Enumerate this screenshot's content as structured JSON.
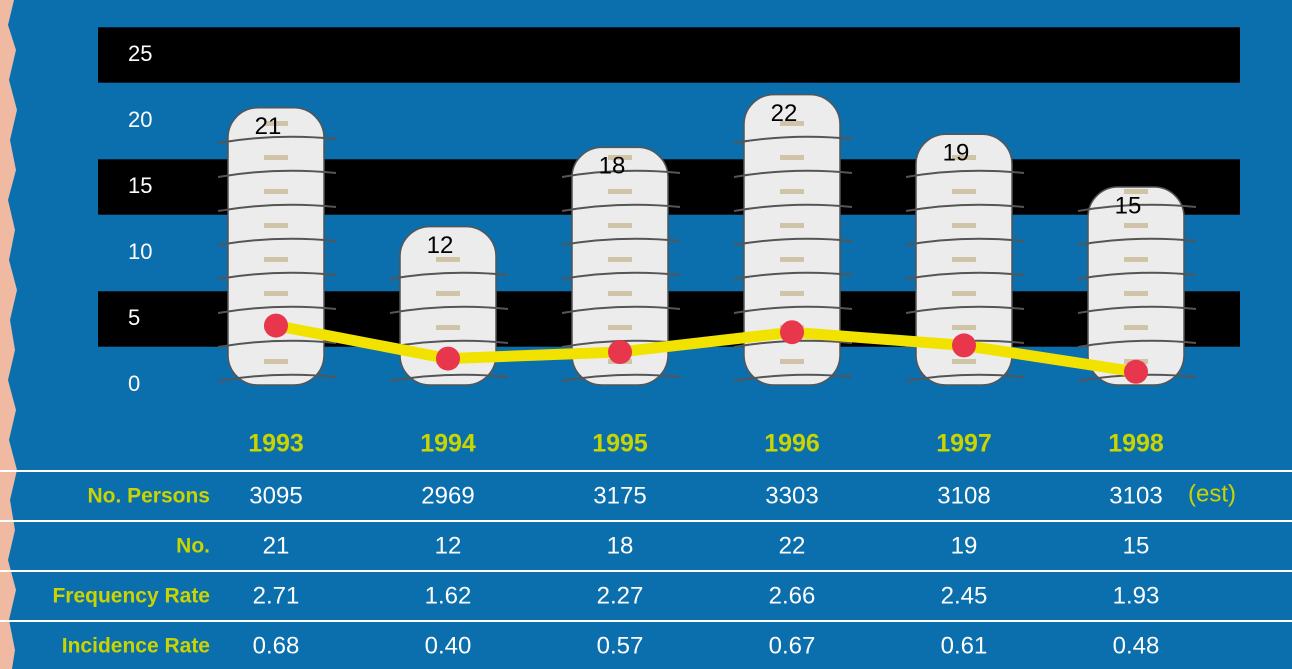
{
  "chart_data": {
    "type": "bar",
    "categories": [
      "1993",
      "1994",
      "1995",
      "1996",
      "1997",
      "1998"
    ],
    "values": [
      21,
      12,
      18,
      22,
      19,
      15
    ],
    "color": "#ececec",
    "line": {
      "color": "#f2e200",
      "marker_color": "#e8364c",
      "values": [
        4.5,
        2,
        2.5,
        4,
        3,
        1
      ]
    },
    "ylim": [
      0,
      25
    ],
    "yticks": [
      0,
      5,
      10,
      15,
      20,
      25
    ],
    "grid": "bands",
    "table": {
      "rows": [
        {
          "label": "No. Persons",
          "cells": [
            "3095",
            "2969",
            "3175",
            "3303",
            "3108",
            "3103"
          ]
        },
        {
          "label": "No.",
          "cells": [
            "21",
            "12",
            "18",
            "22",
            "19",
            "15"
          ]
        },
        {
          "label": "Frequency Rate",
          "cells": [
            "2.71",
            "1.62",
            "2.27",
            "2.66",
            "2.45",
            "1.93"
          ]
        },
        {
          "label": "Incidence Rate",
          "cells": [
            "0.68",
            "0.40",
            "0.57",
            "0.67",
            "0.61",
            "0.48"
          ]
        }
      ],
      "note": "(est)"
    }
  }
}
